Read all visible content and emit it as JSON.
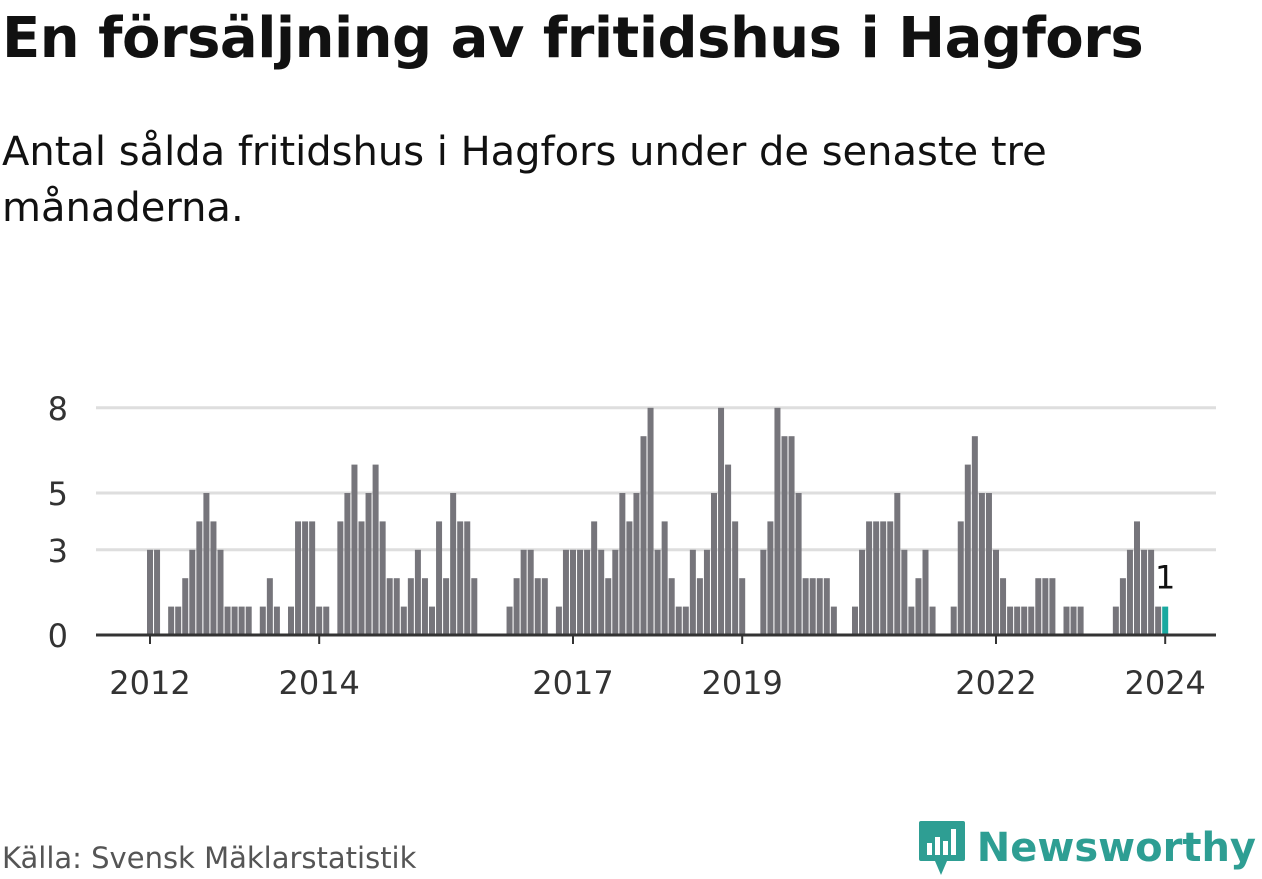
{
  "title": "En försäljning av fritidshus i Hagfors",
  "subtitle": "Antal sålda fritidshus i Hagfors under de senaste tre månaderna.",
  "source": "Källa: Svensk Mäklarstatistik",
  "brand": "Newsworthy",
  "colors": {
    "bar": "#76757b",
    "highlight": "#1aa9a0",
    "grid": "#dedede",
    "axis": "#333333",
    "brand": "#2e9e93"
  },
  "chart_data": {
    "type": "bar",
    "title": "En försäljning av fritidshus i Hagfors",
    "xlabel": "",
    "ylabel": "",
    "ylim": [
      0,
      9
    ],
    "y_ticks": [
      0,
      3,
      5,
      8
    ],
    "x_ticks": [
      {
        "label": "2012",
        "index": 0
      },
      {
        "label": "2014",
        "index": 24
      },
      {
        "label": "2017",
        "index": 60
      },
      {
        "label": "2019",
        "index": 84
      },
      {
        "label": "2022",
        "index": 120
      },
      {
        "label": "2024",
        "index": 144
      }
    ],
    "highlight_index": 144,
    "highlight_label": "1",
    "grid": true,
    "values": [
      3,
      3,
      0,
      1,
      1,
      2,
      3,
      4,
      5,
      4,
      3,
      1,
      1,
      1,
      1,
      0,
      1,
      2,
      1,
      0,
      1,
      4,
      4,
      4,
      1,
      1,
      0,
      4,
      5,
      6,
      4,
      5,
      6,
      4,
      2,
      2,
      1,
      2,
      3,
      2,
      1,
      4,
      2,
      5,
      4,
      4,
      2,
      0,
      0,
      0,
      0,
      1,
      2,
      3,
      3,
      2,
      2,
      0,
      1,
      3,
      3,
      3,
      3,
      4,
      3,
      2,
      3,
      5,
      4,
      5,
      7,
      8,
      3,
      4,
      2,
      1,
      1,
      3,
      2,
      3,
      5,
      8,
      6,
      4,
      2,
      0,
      0,
      3,
      4,
      8,
      7,
      7,
      5,
      2,
      2,
      2,
      2,
      1,
      0,
      0,
      1,
      3,
      4,
      4,
      4,
      4,
      5,
      3,
      1,
      2,
      3,
      1,
      0,
      0,
      1,
      4,
      6,
      7,
      5,
      5,
      3,
      2,
      1,
      1,
      1,
      1,
      2,
      2,
      2,
      0,
      1,
      1,
      1,
      0,
      0,
      0,
      0,
      1,
      2,
      3,
      4,
      3,
      3,
      1,
      1
    ]
  }
}
